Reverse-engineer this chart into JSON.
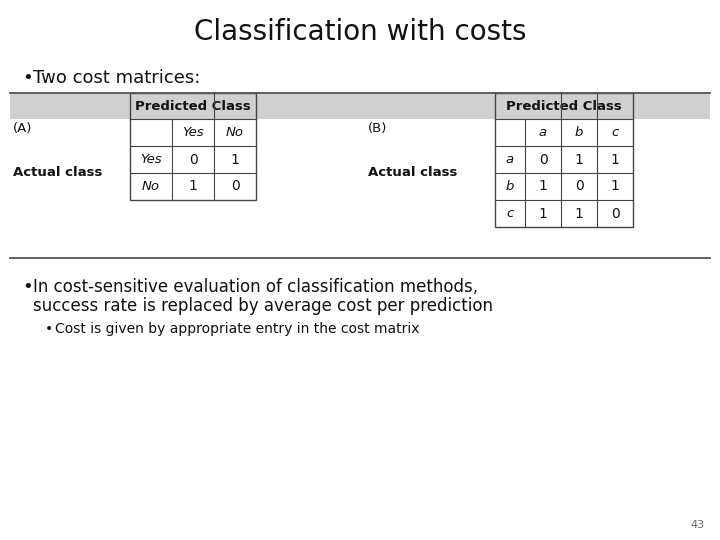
{
  "title": "Classification with costs",
  "title_fontsize": 20,
  "background_color": "#ffffff",
  "bullet1": "Two cost matrices:",
  "bullet2_line1": "In cost-sensitive evaluation of classification methods,",
  "bullet2_line2": "success rate is replaced by average cost per prediction",
  "bullet3": "Cost is given by appropriate entry in the cost matrix",
  "page_num": "43",
  "tableA": {
    "label": "(A)",
    "header_col": "Predicted Class",
    "header_cols": [
      "Yes",
      "No"
    ],
    "row_header": "Actual class",
    "row_labels": [
      "Yes",
      "No"
    ],
    "data": [
      [
        "0",
        "1"
      ],
      [
        "1",
        "0"
      ]
    ],
    "header_bg": "#d0d0d0"
  },
  "tableB": {
    "label": "(B)",
    "header_col": "Predicted Class",
    "header_cols": [
      "a",
      "b",
      "c"
    ],
    "row_header": "Actual class",
    "row_labels": [
      "a",
      "b",
      "c"
    ],
    "data": [
      [
        "0",
        "1",
        "1"
      ],
      [
        "1",
        "0",
        "1"
      ],
      [
        "1",
        "1",
        "0"
      ]
    ],
    "header_bg": "#d0d0d0"
  }
}
